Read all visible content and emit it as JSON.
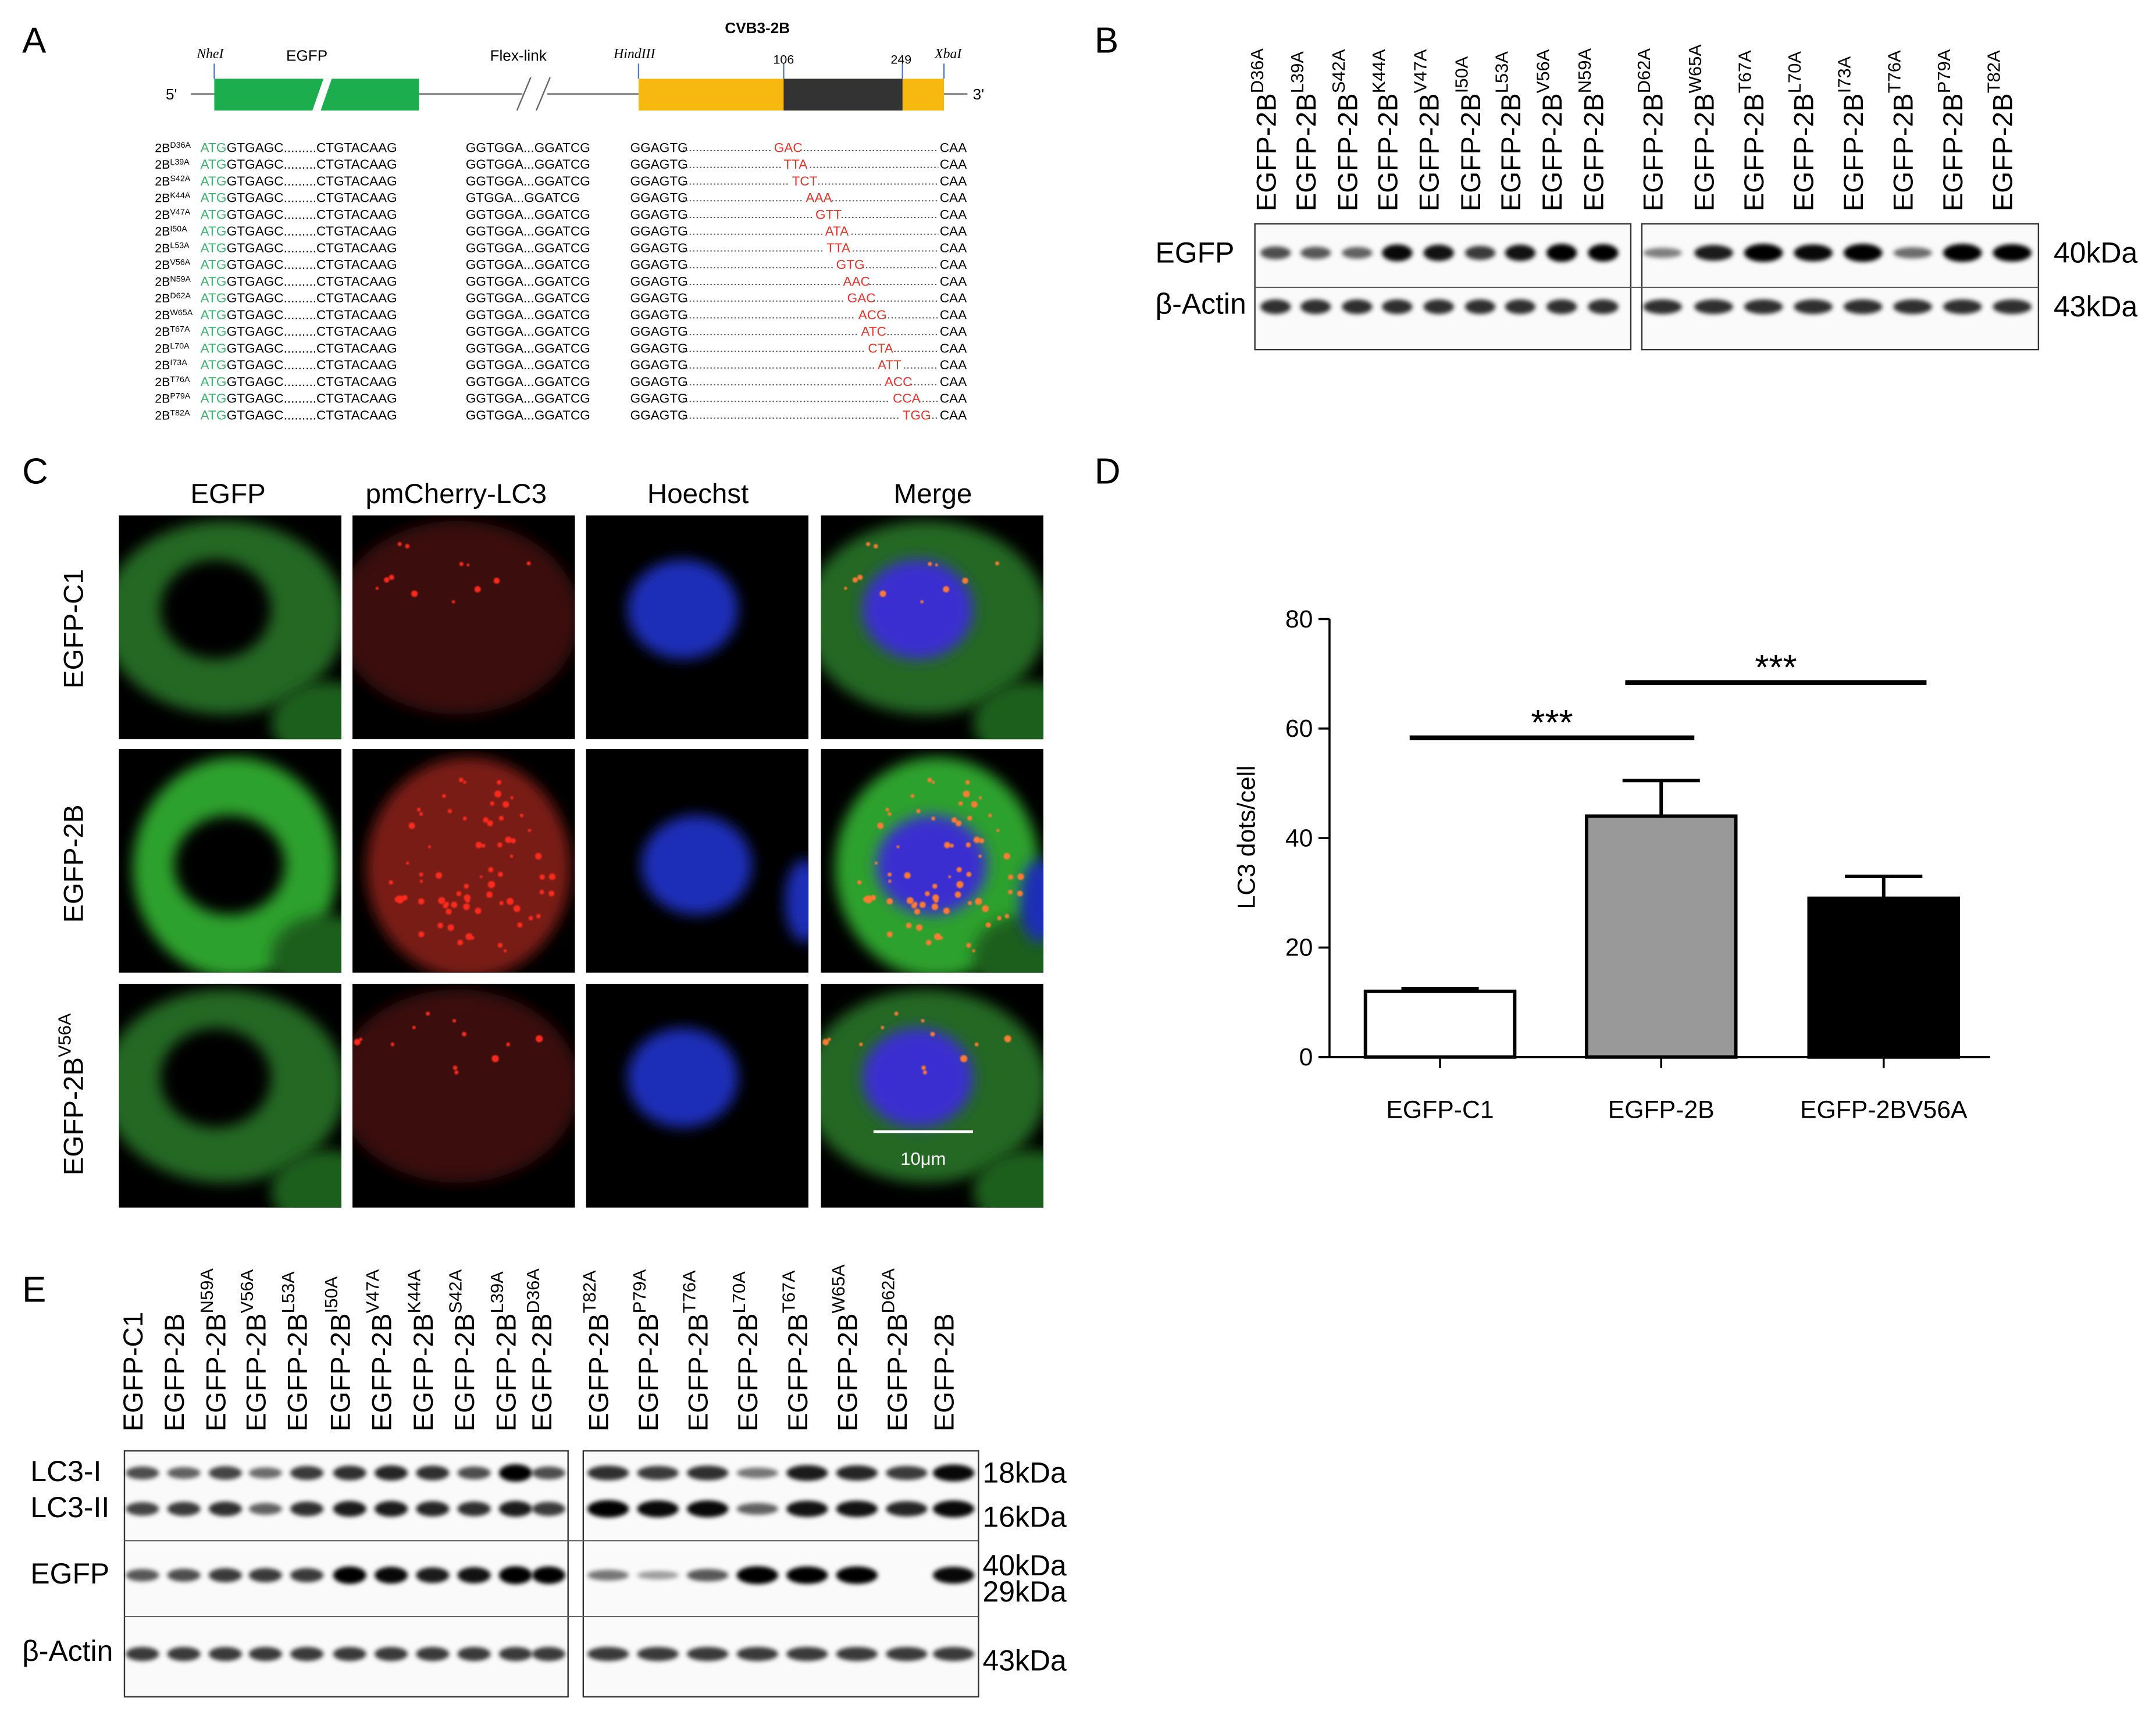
{
  "panel_labels": [
    "A",
    "B",
    "C",
    "D",
    "E"
  ],
  "panel_a": {
    "construct": {
      "five_prime": "5'",
      "three_prime": "3'",
      "nhei": "NheI",
      "egfp": "EGFP",
      "flex_link": "Flex-link",
      "hindiii": "HindIII",
      "cvb3_2b": "CVB3-2B",
      "pos_start": "106",
      "pos_end": "249",
      "xbai": "XbaI"
    },
    "sequences": [
      {
        "name": "2B",
        "mutation": "D36A",
        "start": "ATG",
        "egfp_seq": "GTGAGC.........CTGTACAAG",
        "link_seq": "GGTGGA...GGATCG",
        "seq": "GGAGTG",
        "codon": "GAC",
        "end": "CAA"
      },
      {
        "name": "2B",
        "mutation": "L39A",
        "start": "ATG",
        "egfp_seq": "GTGAGC.........CTGTACAAG",
        "link_seq": "GGTGGA...GGATCG",
        "seq": "GGAGTG",
        "codon": "TTA",
        "end": "CAA"
      },
      {
        "name": "2B",
        "mutation": "S42A",
        "start": "ATG",
        "egfp_seq": "GTGAGC.........CTGTACAAG",
        "link_seq": "GGTGGA...GGATCG",
        "seq": "GGAGTG",
        "codon": "TCT",
        "end": "CAA"
      },
      {
        "name": "2B",
        "mutation": "K44A",
        "start": "ATG",
        "egfp_seq": "GTGAGC.........CTGTACAAG",
        "link_seq": "GTGGA...GGATCG",
        "seq": "GGAGTG",
        "codon": "AAA",
        "end": "CAA"
      },
      {
        "name": "2B",
        "mutation": "V47A",
        "start": "ATG",
        "egfp_seq": "GTGAGC.........CTGTACAAG",
        "link_seq": "GGTGGA...GGATCG",
        "seq": "GGAGTG",
        "codon": "GTT",
        "end": "CAA"
      },
      {
        "name": "2B",
        "mutation": "I50A",
        "start": "ATG",
        "egfp_seq": "GTGAGC.........CTGTACAAG",
        "link_seq": "GGTGGA...GGATCG",
        "seq": "GGAGTG",
        "codon": "ATA",
        "end": "CAA"
      },
      {
        "name": "2B",
        "mutation": "L53A",
        "start": "ATG",
        "egfp_seq": "GTGAGC.........CTGTACAAG",
        "link_seq": "GGTGGA...GGATCG",
        "seq": "GGAGTG",
        "codon": "TTA",
        "end": "CAA"
      },
      {
        "name": "2B",
        "mutation": "V56A",
        "start": "ATG",
        "egfp_seq": "GTGAGC.........CTGTACAAG",
        "link_seq": "GGTGGA...GGATCG",
        "seq": "GGAGTG",
        "codon": "GTG",
        "end": "CAA"
      },
      {
        "name": "2B",
        "mutation": "N59A",
        "start": "ATG",
        "egfp_seq": "GTGAGC.........CTGTACAAG",
        "link_seq": "GGTGGA...GGATCG",
        "seq": "GGAGTG",
        "codon": "AAC",
        "end": "CAA"
      },
      {
        "name": "2B",
        "mutation": "D62A",
        "start": "ATG",
        "egfp_seq": "GTGAGC.........CTGTACAAG",
        "link_seq": "GGTGGA...GGATCG",
        "seq": "GGAGTG",
        "codon": "GAC",
        "end": "CAA"
      },
      {
        "name": "2B",
        "mutation": "W65A",
        "start": "ATG",
        "egfp_seq": "GTGAGC.........CTGTACAAG",
        "link_seq": "GGTGGA...GGATCG",
        "seq": "GGAGTG",
        "codon": "ACG",
        "end": "CAA"
      },
      {
        "name": "2B",
        "mutation": "T67A",
        "start": "ATG",
        "egfp_seq": "GTGAGC.........CTGTACAAG",
        "link_seq": "GGTGGA...GGATCG",
        "seq": "GGAGTG",
        "codon": "ATC",
        "end": "CAA"
      },
      {
        "name": "2B",
        "mutation": "L70A",
        "start": "ATG",
        "egfp_seq": "GTGAGC.........CTGTACAAG",
        "link_seq": "GGTGGA...GGATCG",
        "seq": "GGAGTG",
        "codon": "CTA",
        "end": "CAA"
      },
      {
        "name": "2B",
        "mutation": "I73A",
        "start": "ATG",
        "egfp_seq": "GTGAGC.........CTGTACAAG",
        "link_seq": "GGTGGA...GGATCG",
        "seq": "GGAGTG",
        "codon": "ATT",
        "end": "CAA"
      },
      {
        "name": "2B",
        "mutation": "T76A",
        "start": "ATG",
        "egfp_seq": "GTGAGC.........CTGTACAAG",
        "link_seq": "GGTGGA...GGATCG",
        "seq": "GGAGTG",
        "codon": "ACC",
        "end": "CAA"
      },
      {
        "name": "2B",
        "mutation": "P79A",
        "start": "ATG",
        "egfp_seq": "GTGAGC.........CTGTACAAG",
        "link_seq": "GGTGGA...GGATCG",
        "seq": "GGAGTG",
        "codon": "CCA",
        "end": "CAA"
      },
      {
        "name": "2B",
        "mutation": "T82A",
        "start": "ATG",
        "egfp_seq": "GTGAGC.........CTGTACAAG",
        "link_seq": "GGTGGA...GGATCG",
        "seq": "GGAGTG",
        "codon": "TGG",
        "end": "CAA"
      }
    ]
  },
  "panel_b": {
    "lanes": [
      {
        "name": "EGFP-2B",
        "mutation": "D36A"
      },
      {
        "name": "EGFP-2B",
        "mutation": "L39A"
      },
      {
        "name": "EGFP-2B",
        "mutation": "S42A"
      },
      {
        "name": "EGFP-2B",
        "mutation": "K44A"
      },
      {
        "name": "EGFP-2B",
        "mutation": "V47A"
      },
      {
        "name": "EGFP-2B",
        "mutation": "I50A"
      },
      {
        "name": "EGFP-2B",
        "mutation": "L53A"
      },
      {
        "name": "EGFP-2B",
        "mutation": "V56A"
      },
      {
        "name": "EGFP-2B",
        "mutation": "N59A"
      },
      {
        "name": "EGFP-2B",
        "mutation": "D62A"
      },
      {
        "name": "EGFP-2B",
        "mutation": "W65A"
      },
      {
        "name": "EGFP-2B",
        "mutation": "T67A"
      },
      {
        "name": "EGFP-2B",
        "mutation": "L70A"
      },
      {
        "name": "EGFP-2B",
        "mutation": "I73A"
      },
      {
        "name": "EGFP-2B",
        "mutation": "T76A"
      },
      {
        "name": "EGFP-2B",
        "mutation": "P79A"
      },
      {
        "name": "EGFP-2B",
        "mutation": "T82A"
      }
    ],
    "rows": [
      "EGFP",
      "β-Actin"
    ],
    "sizes": [
      "40kDa",
      "43kDa"
    ]
  },
  "panel_c": {
    "columns": [
      "EGFP",
      "pmCherry-LC3",
      "Hoechst",
      "Merge"
    ],
    "rows": [
      {
        "name": "EGFP-C1"
      },
      {
        "name": "EGFP-2B"
      },
      {
        "name": "EGFP-2B",
        "mutation": "V56A"
      }
    ],
    "scale_bar": "10μm"
  },
  "chart_data": {
    "type": "bar",
    "ylabel": "LC3 dots/cell",
    "categories": [
      "EGFP-C1",
      "EGFP-2B",
      "EGFP-2BV56A"
    ],
    "values": [
      12,
      44,
      29
    ],
    "errors": [
      0.5,
      6.5,
      4
    ],
    "colors": [
      "#ffffff",
      "#999999",
      "#000000"
    ],
    "ylim": [
      0,
      80
    ],
    "yticks": [
      0,
      20,
      40,
      60,
      80
    ],
    "significance": [
      "***",
      "***"
    ]
  },
  "panel_e": {
    "lanes": [
      {
        "name": "EGFP-C1"
      },
      {
        "name": "EGFP-2B"
      },
      {
        "name": "EGFP-2B",
        "mutation": "N59A"
      },
      {
        "name": "EGFP-2B",
        "mutation": "V56A"
      },
      {
        "name": "EGFP-2B",
        "mutation": "L53A"
      },
      {
        "name": "EGFP-2B",
        "mutation": "I50A"
      },
      {
        "name": "EGFP-2B",
        "mutation": "V47A"
      },
      {
        "name": "EGFP-2B",
        "mutation": "K44A"
      },
      {
        "name": "EGFP-2B",
        "mutation": "S42A"
      },
      {
        "name": "EGFP-2B",
        "mutation": "L39A"
      },
      {
        "name": "EGFP-2B",
        "mutation": "D36A"
      },
      {
        "name": "EGFP-2B",
        "mutation": "T82A"
      },
      {
        "name": "EGFP-2B",
        "mutation": "P79A"
      },
      {
        "name": "EGFP-2B",
        "mutation": "T76A"
      },
      {
        "name": "EGFP-2B",
        "mutation": "L70A"
      },
      {
        "name": "EGFP-2B",
        "mutation": "T67A"
      },
      {
        "name": "EGFP-2B",
        "mutation": "W65A"
      },
      {
        "name": "EGFP-2B",
        "mutation": "D62A"
      },
      {
        "name": "EGFP-2B"
      }
    ],
    "rows": [
      "LC3-I",
      "LC3-II",
      "EGFP",
      "β-Actin"
    ],
    "sizes": [
      "18kDa",
      "16kDa",
      "40kDa",
      "29kDa",
      "43kDa"
    ]
  }
}
